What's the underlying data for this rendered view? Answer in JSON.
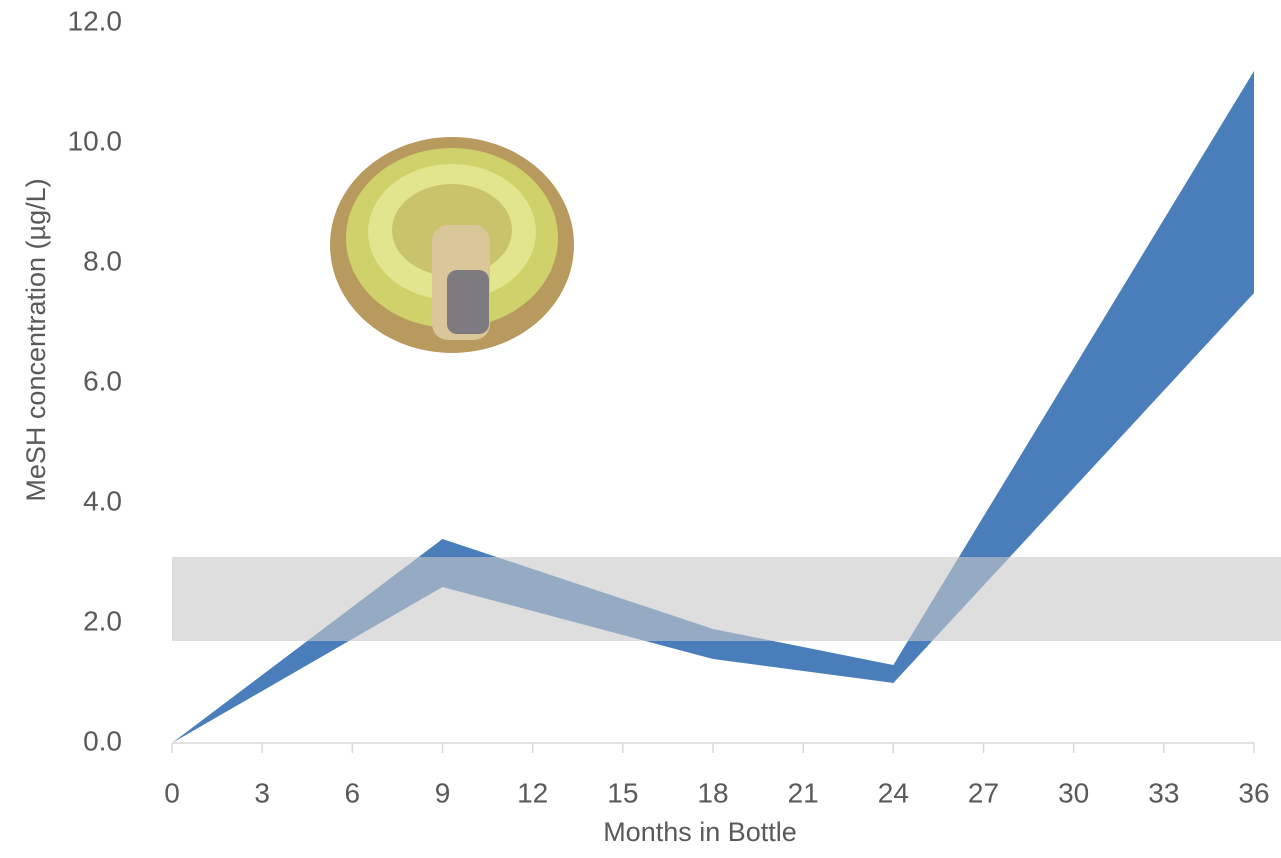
{
  "chart_data": {
    "type": "range_area",
    "x_label": "Months in Bottle",
    "y_label": "MeSH concentration (µg/L)",
    "x": [
      0,
      9,
      18,
      24,
      36
    ],
    "low": [
      0,
      2.6,
      1.4,
      1.0,
      7.5
    ],
    "high": [
      0,
      3.4,
      1.9,
      1.3,
      11.2
    ],
    "color": "#4a7ebb",
    "reference_band": [
      1.7,
      3.1
    ],
    "reference_color": "#c8c8c8",
    "xlim": [
      0,
      36
    ],
    "xticks": [
      0,
      3,
      6,
      9,
      12,
      15,
      18,
      21,
      24,
      27,
      30,
      33,
      36
    ],
    "ylim": [
      0,
      12
    ],
    "yticks": [
      {
        "value": 0,
        "label": "0.0"
      },
      {
        "value": 2,
        "label": "2.0"
      },
      {
        "value": 4,
        "label": "4.0"
      },
      {
        "value": 6,
        "label": "6.0"
      },
      {
        "value": 8,
        "label": "8.0"
      },
      {
        "value": 10,
        "label": "10.0"
      },
      {
        "value": 12,
        "label": "12.0"
      }
    ],
    "grid": false
  }
}
